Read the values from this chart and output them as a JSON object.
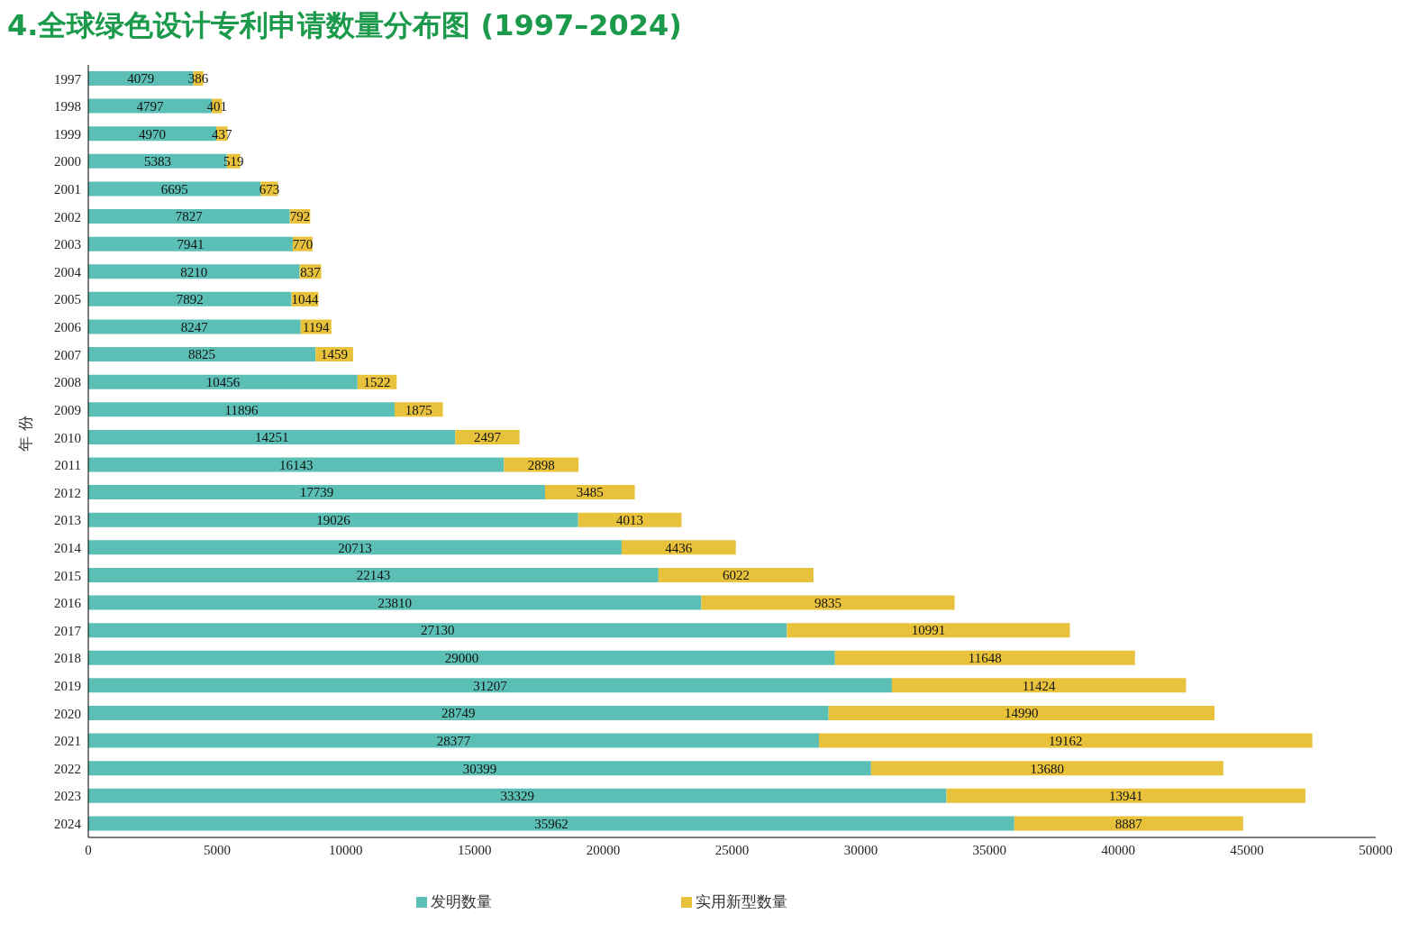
{
  "chart_data": {
    "type": "bar",
    "orientation": "horizontal",
    "stacked": true,
    "title": "4.全球绿色设计专利申请数量分布图 (1997–2024)",
    "ylabel": "年 份",
    "categories": [
      "1997",
      "1998",
      "1999",
      "2000",
      "2001",
      "2002",
      "2003",
      "2004",
      "2005",
      "2006",
      "2007",
      "2008",
      "2009",
      "2010",
      "2011",
      "2012",
      "2013",
      "2014",
      "2015",
      "2016",
      "2017",
      "2018",
      "2019",
      "2020",
      "2021",
      "2022",
      "2023",
      "2024"
    ],
    "series": [
      {
        "name": "发明数量",
        "color": "#5bbfb5",
        "values": [
          4079,
          4797,
          4970,
          5383,
          6695,
          7827,
          7941,
          8210,
          7892,
          8247,
          8825,
          10456,
          11896,
          14251,
          16143,
          17739,
          19026,
          20713,
          22143,
          23810,
          27130,
          29000,
          31207,
          28749,
          28377,
          30399,
          33329,
          35962
        ]
      },
      {
        "name": "实用新型数量",
        "color": "#e9c23c",
        "values": [
          386,
          401,
          437,
          519,
          673,
          792,
          770,
          837,
          1044,
          1194,
          1459,
          1522,
          1875,
          2497,
          2898,
          3485,
          4013,
          4436,
          6022,
          9835,
          10991,
          11648,
          11424,
          14990,
          19162,
          13680,
          13941,
          8887
        ]
      }
    ],
    "xlim": [
      0,
      50000
    ],
    "xticks": [
      0,
      5000,
      10000,
      15000,
      20000,
      25000,
      30000,
      35000,
      40000,
      45000,
      50000
    ],
    "data_labels": true,
    "grid": false,
    "legend": "bottom"
  }
}
